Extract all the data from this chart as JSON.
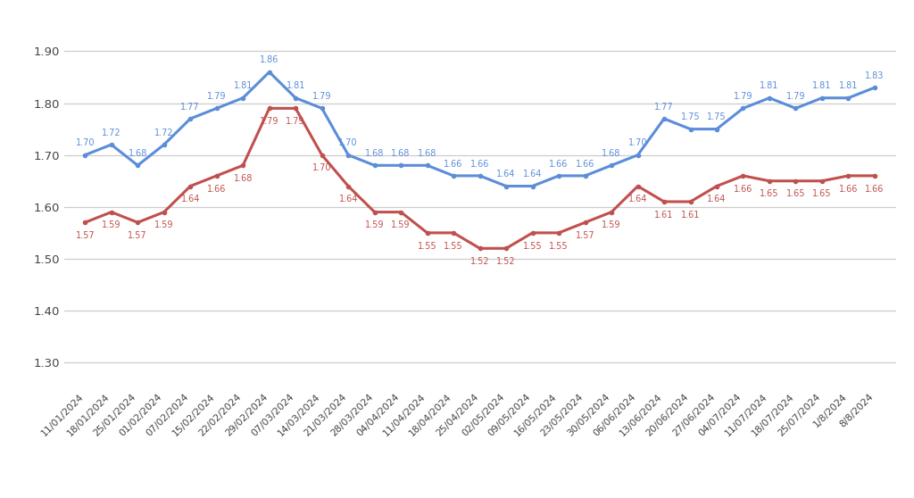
{
  "dates": [
    "11/01/2024",
    "18/01/2024",
    "25/01/2024",
    "01/02/2024",
    "07/02/2024",
    "15/02/2024",
    "22/02/2024",
    "29/02/2024",
    "07/03/2024",
    "14/03/2024",
    "21/03/2024",
    "28/03/2024",
    "04/04/2024",
    "11/04/2024",
    "18/04/2024",
    "25/04/2024",
    "02/05/2024",
    "09/05/2024",
    "16/05/2024",
    "23/05/2024",
    "30/05/2024",
    "06/06/2024",
    "13/06/2024",
    "20/06/2024",
    "27/06/2024",
    "04/07/2024",
    "11/07/2024",
    "18/07/2024",
    "25/07/2024",
    "1/8/2024",
    "8/8/2024"
  ],
  "pp_copo": [
    1.7,
    1.72,
    1.68,
    1.72,
    1.77,
    1.79,
    1.81,
    1.86,
    1.81,
    1.79,
    1.7,
    1.68,
    1.68,
    1.68,
    1.66,
    1.66,
    1.64,
    1.64,
    1.66,
    1.66,
    1.68,
    1.7,
    1.77,
    1.75,
    1.75,
    1.79,
    1.81,
    1.79,
    1.81,
    1.81,
    1.83
  ],
  "pp_homo": [
    1.57,
    1.59,
    1.57,
    1.59,
    1.64,
    1.66,
    1.68,
    1.79,
    1.79,
    1.7,
    1.64,
    1.59,
    1.59,
    1.55,
    1.55,
    1.52,
    1.52,
    1.55,
    1.55,
    1.57,
    1.59,
    1.64,
    1.61,
    1.61,
    1.64,
    1.66,
    1.65,
    1.65,
    1.65,
    1.66,
    1.66
  ],
  "color_copo": "#5B8DD9",
  "color_homo": "#C0504D",
  "ylim_min": 1.25,
  "ylim_max": 1.97,
  "yticks": [
    1.3,
    1.4,
    1.5,
    1.6,
    1.7,
    1.8,
    1.9
  ],
  "background_color": "#ffffff",
  "grid_color": "#cccccc",
  "label_fontsize": 7.0,
  "tick_fontsize": 9.5,
  "xtick_fontsize": 7.8
}
